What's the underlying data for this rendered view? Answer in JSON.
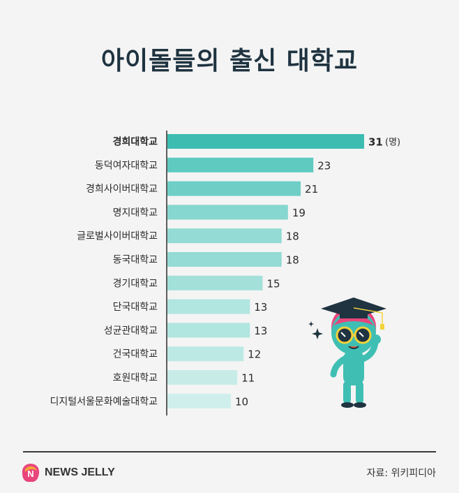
{
  "title": "아이돌들의 출신 대학교",
  "chart_data": {
    "type": "bar",
    "orientation": "horizontal",
    "categories": [
      "경희대학교",
      "동덕여자대학교",
      "경희사이버대학교",
      "명지대학교",
      "글로벌사이버대학교",
      "동국대학교",
      "경기대학교",
      "단국대학교",
      "성균관대학교",
      "건국대학교",
      "호원대학교",
      "디지털서울문화예술대학교"
    ],
    "values": [
      31,
      23,
      21,
      19,
      18,
      18,
      15,
      13,
      13,
      12,
      11,
      10
    ],
    "unit": "(명)",
    "xlim": [
      0,
      31
    ],
    "grid": false,
    "colors": [
      "#3dbdb2",
      "#5fcac0",
      "#6fcfc6",
      "#86d7cf",
      "#93dbd4",
      "#93dbd4",
      "#a3e0da",
      "#b1e5e0",
      "#b1e5e0",
      "#bde9e4",
      "#c7ece8",
      "#cfefec"
    ]
  },
  "footer": {
    "logo_text": "NEWS JELLY",
    "logo_letter": "N",
    "source": "자료: 위키피디아"
  }
}
